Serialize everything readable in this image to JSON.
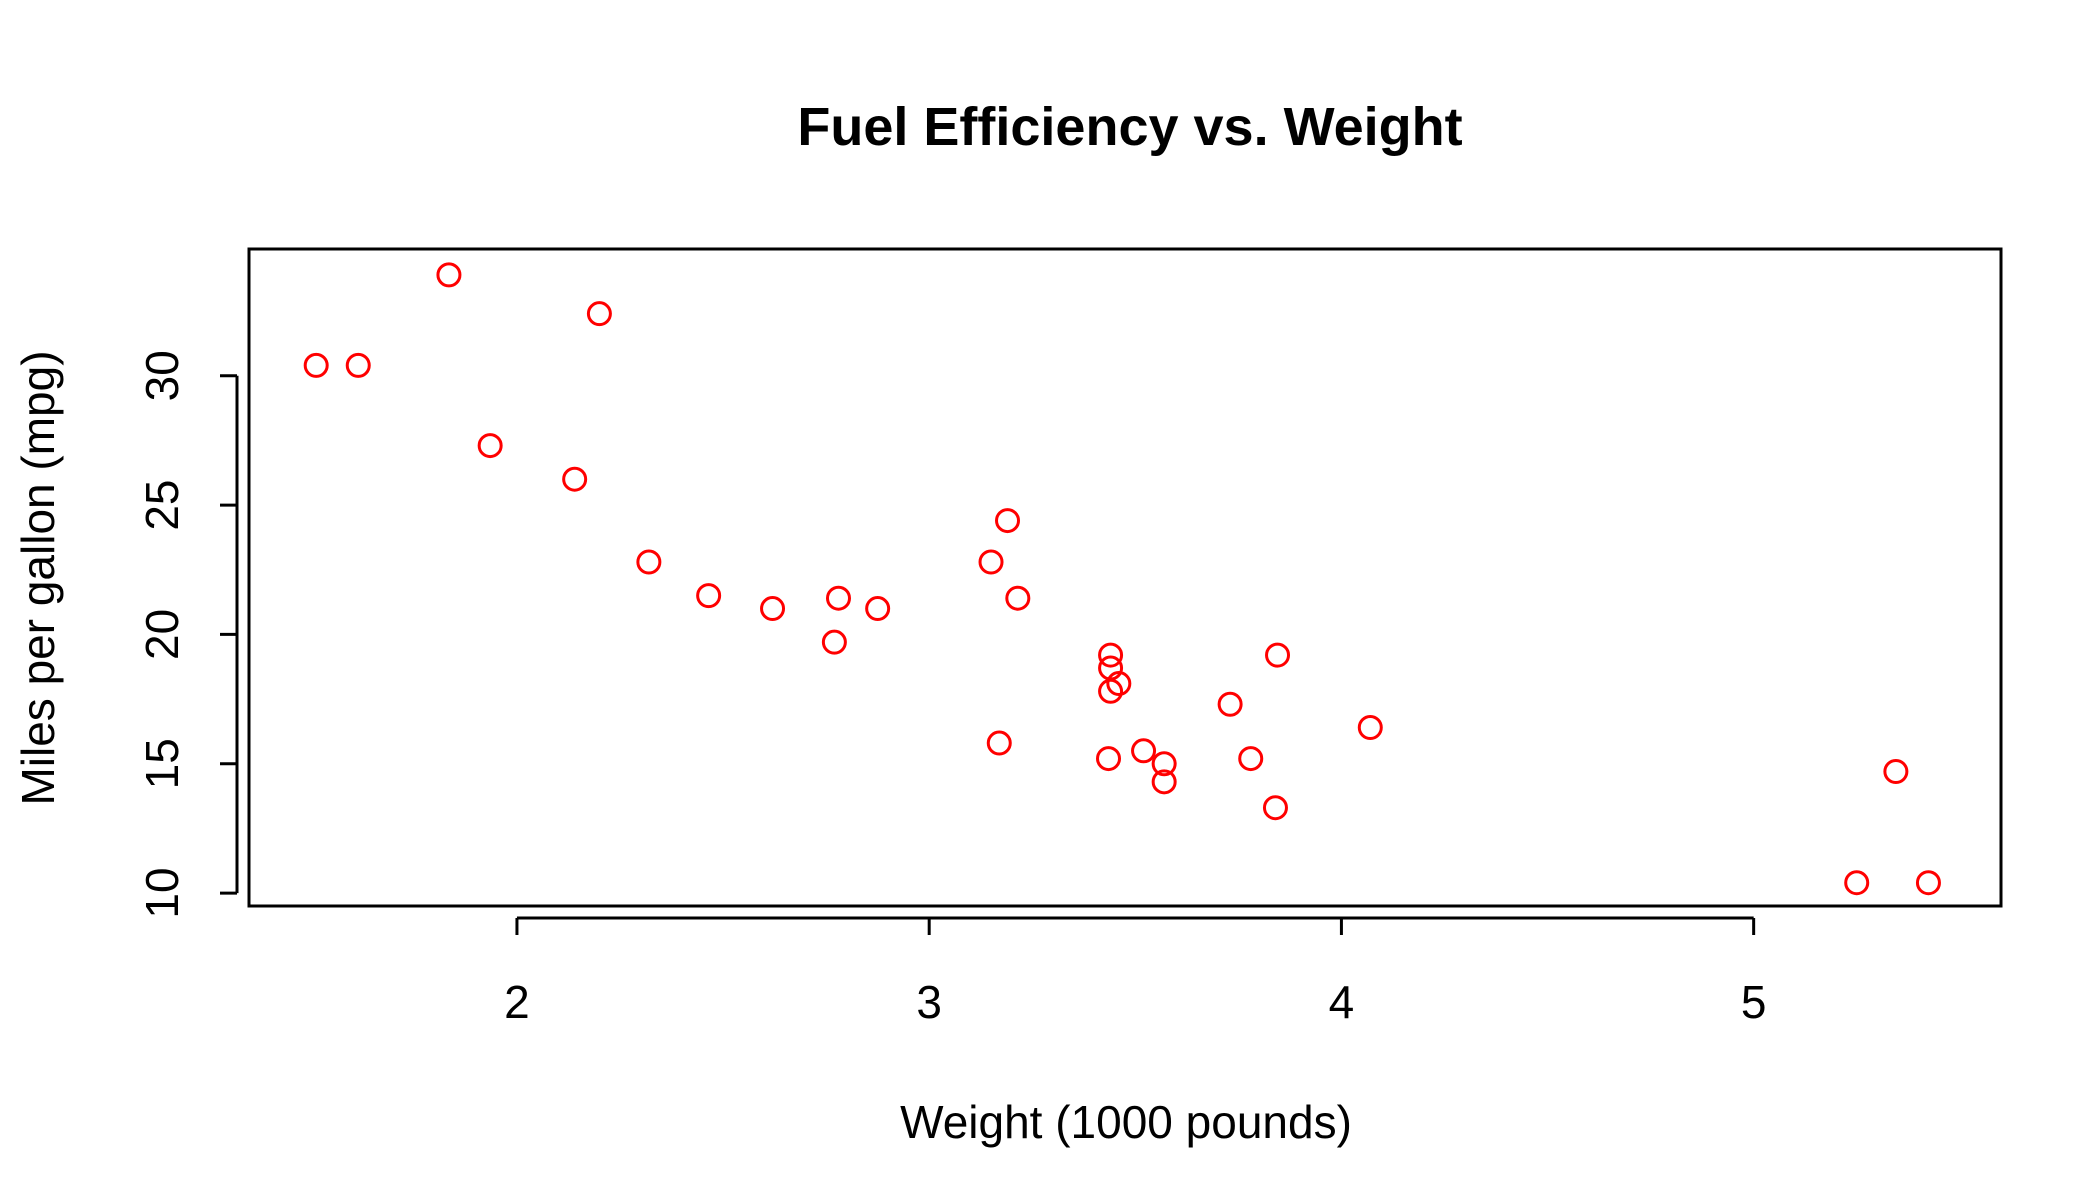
{
  "chart_data": {
    "type": "scatter",
    "title": "Fuel Efficiency vs. Weight",
    "xlabel": "Weight (1000 pounds)",
    "ylabel": "Miles per gallon (mpg)",
    "xlim": [
      1.35,
      5.6
    ],
    "ylim": [
      9.5,
      34.9
    ],
    "x_ticks": [
      2,
      3,
      4,
      5
    ],
    "y_ticks": [
      10,
      15,
      20,
      25,
      30
    ],
    "x_tick_labels": [
      "2",
      "3",
      "4",
      "5"
    ],
    "y_tick_labels": [
      "10",
      "15",
      "20",
      "25",
      "30"
    ],
    "grid": false,
    "legend": "none",
    "marker": "open-circle",
    "series": [
      {
        "color": "#ff0000",
        "points": [
          {
            "x": 2.62,
            "y": 21.0
          },
          {
            "x": 2.875,
            "y": 21.0
          },
          {
            "x": 2.32,
            "y": 22.8
          },
          {
            "x": 3.215,
            "y": 21.4
          },
          {
            "x": 3.44,
            "y": 18.7
          },
          {
            "x": 3.46,
            "y": 18.1
          },
          {
            "x": 3.57,
            "y": 14.3
          },
          {
            "x": 3.19,
            "y": 24.4
          },
          {
            "x": 3.15,
            "y": 22.8
          },
          {
            "x": 3.44,
            "y": 19.2
          },
          {
            "x": 3.44,
            "y": 17.8
          },
          {
            "x": 4.07,
            "y": 16.4
          },
          {
            "x": 3.73,
            "y": 17.3
          },
          {
            "x": 3.78,
            "y": 15.2
          },
          {
            "x": 5.25,
            "y": 10.4
          },
          {
            "x": 5.424,
            "y": 10.4
          },
          {
            "x": 5.345,
            "y": 14.7
          },
          {
            "x": 2.2,
            "y": 32.4
          },
          {
            "x": 1.615,
            "y": 30.4
          },
          {
            "x": 1.835,
            "y": 33.9
          },
          {
            "x": 2.465,
            "y": 21.5
          },
          {
            "x": 3.52,
            "y": 15.5
          },
          {
            "x": 3.435,
            "y": 15.2
          },
          {
            "x": 3.84,
            "y": 13.3
          },
          {
            "x": 3.845,
            "y": 19.2
          },
          {
            "x": 1.935,
            "y": 27.3
          },
          {
            "x": 2.14,
            "y": 26.0
          },
          {
            "x": 1.513,
            "y": 30.4
          },
          {
            "x": 3.17,
            "y": 15.8
          },
          {
            "x": 2.77,
            "y": 19.7
          },
          {
            "x": 3.57,
            "y": 15.0
          },
          {
            "x": 2.78,
            "y": 21.4
          }
        ]
      }
    ]
  }
}
